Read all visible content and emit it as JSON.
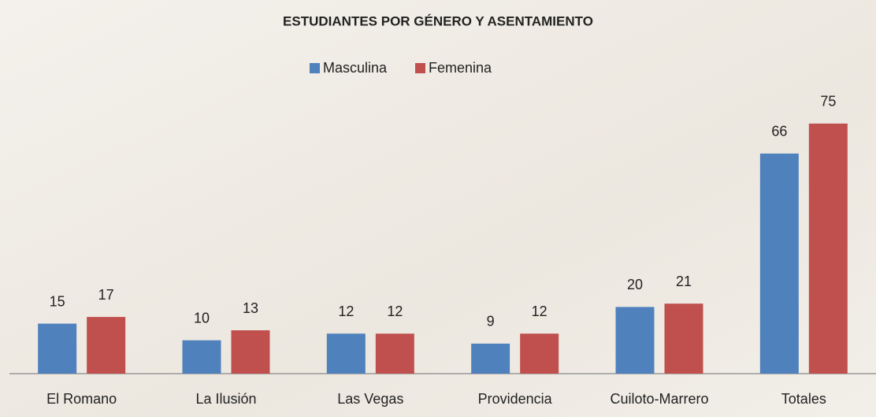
{
  "chart_data": {
    "type": "bar",
    "title": "ESTUDIANTES POR GÉNERO Y ASENTAMIENTO",
    "categories": [
      "El Romano",
      "La Ilusión",
      "Las Vegas",
      "Providencia",
      "Cuiloto-Marrero",
      "Totales"
    ],
    "series": [
      {
        "name": "Masculina",
        "color": "#4f81bd",
        "values": [
          15,
          10,
          12,
          9,
          20,
          66
        ]
      },
      {
        "name": "Femenina",
        "color": "#c0504d",
        "values": [
          17,
          13,
          12,
          12,
          21,
          75
        ]
      }
    ],
    "legend": "top"
  }
}
